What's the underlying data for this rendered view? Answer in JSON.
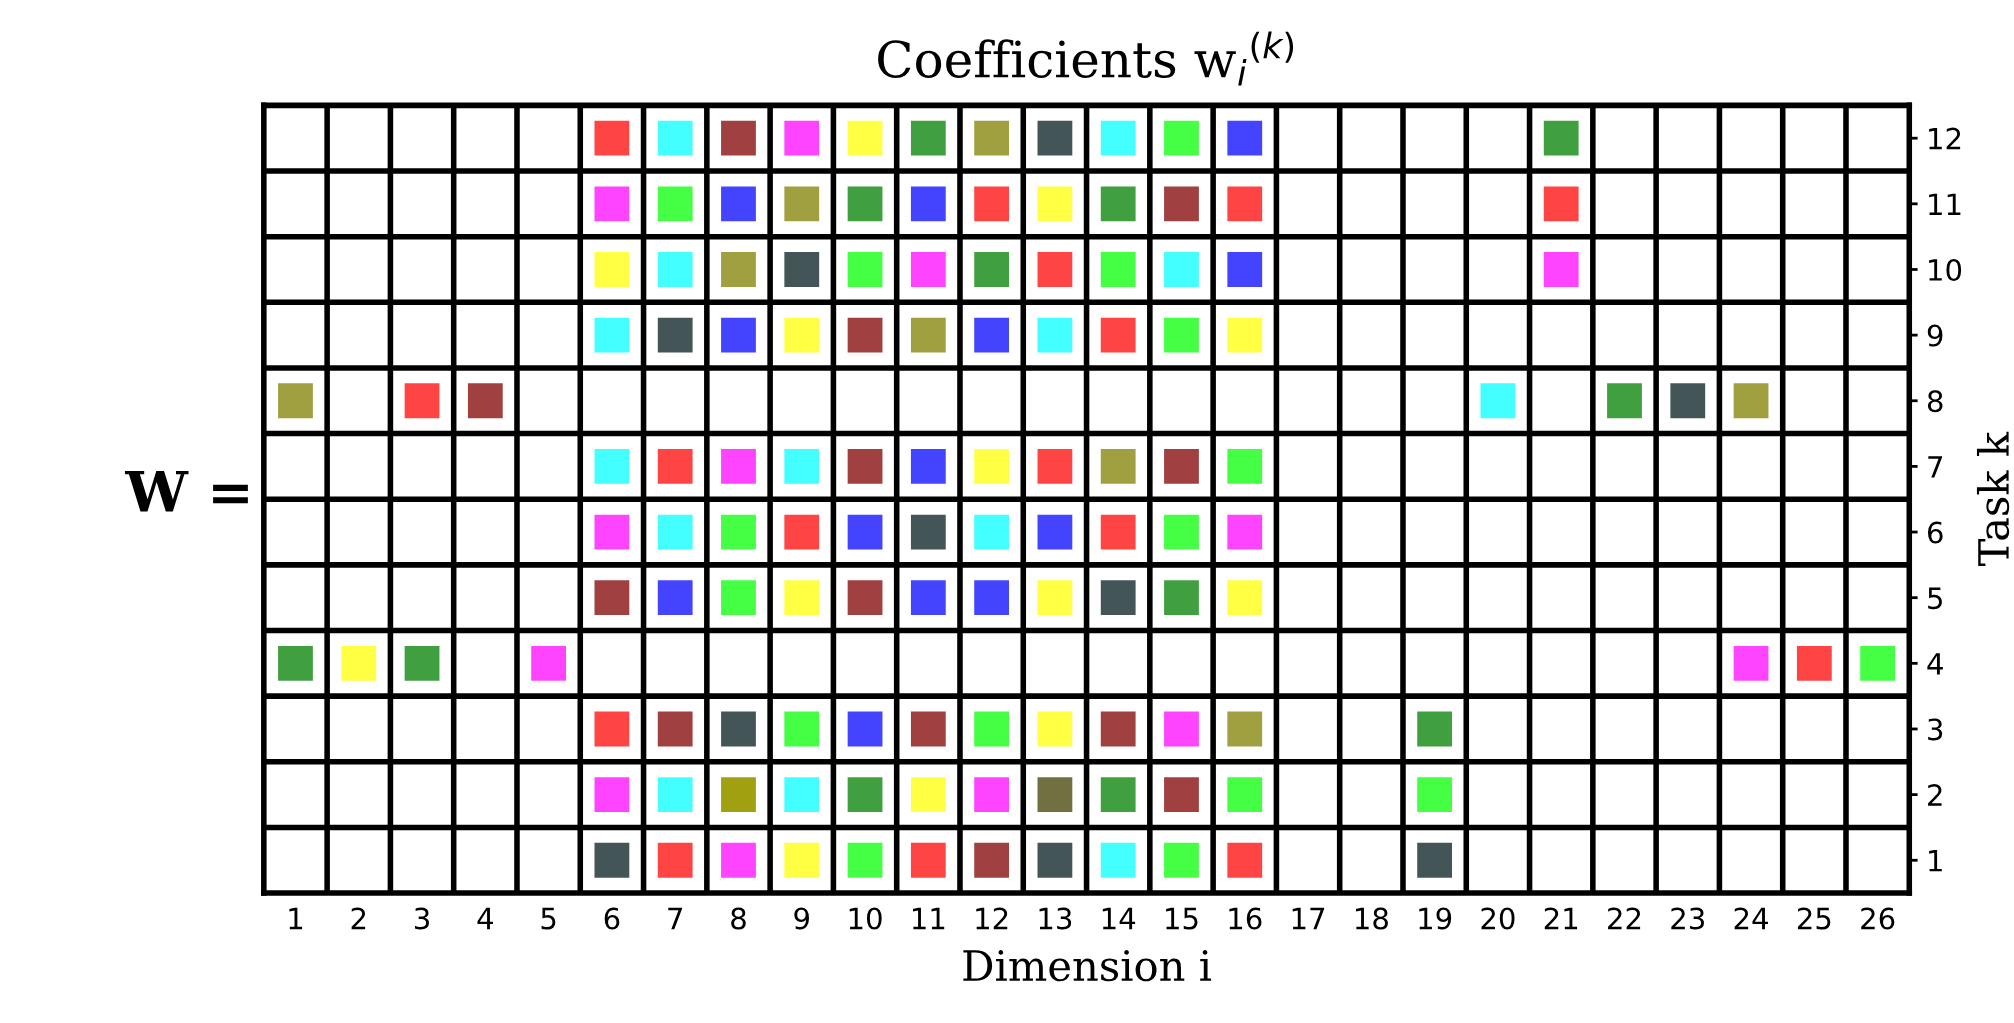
{
  "chart_data": {
    "type": "scatter",
    "title": "Coefficients w$_{i}$$^{(k)}$",
    "xlabel": "Dimension i",
    "ylabel": "Task k",
    "annotations": [
      "W ="
    ],
    "marker": "square",
    "grid": true,
    "xlim": [
      0.5,
      26.5
    ],
    "xticks": [
      1,
      2,
      3,
      4,
      5,
      6,
      7,
      8,
      9,
      10,
      11,
      12,
      13,
      14,
      15,
      16,
      17,
      18,
      19,
      20,
      21,
      22,
      23,
      24,
      25,
      26
    ],
    "ylim": [
      0.5,
      12.5
    ],
    "yticks": [
      1,
      2,
      3,
      4,
      5,
      6,
      7,
      8,
      9,
      10,
      11,
      12
    ],
    "series": [
      {
        "color": "#ff4444",
        "x": [
          6,
          12,
          16,
          21,
          13,
          14,
          3,
          7,
          13,
          9,
          14,
          25,
          6,
          7,
          11,
          16
        ],
        "values": [
          12,
          11,
          11,
          11,
          10,
          9,
          8,
          7,
          7,
          6,
          6,
          4,
          3,
          1,
          1,
          1
        ]
      },
      {
        "color": "#44ffff",
        "x": [
          7,
          14,
          7,
          15,
          6,
          13,
          20,
          6,
          9,
          7,
          12,
          7,
          9,
          14
        ],
        "values": [
          12,
          12,
          10,
          10,
          9,
          9,
          8,
          7,
          7,
          6,
          6,
          2,
          2,
          1
        ]
      },
      {
        "color": "#a04040",
        "x": [
          8,
          15,
          10,
          4,
          10,
          15,
          6,
          10,
          7,
          11,
          14,
          15,
          12
        ],
        "values": [
          12,
          11,
          9,
          8,
          7,
          7,
          5,
          5,
          3,
          3,
          3,
          2,
          1
        ]
      },
      {
        "color": "#ff44ff",
        "x": [
          9,
          6,
          11,
          21,
          8,
          6,
          16,
          5,
          24,
          15,
          6,
          12,
          8
        ],
        "values": [
          12,
          11,
          10,
          10,
          7,
          6,
          6,
          4,
          4,
          3,
          2,
          2,
          1
        ]
      },
      {
        "color": "#ffff44",
        "x": [
          10,
          13,
          6,
          9,
          16,
          12,
          9,
          13,
          16,
          2,
          13,
          11,
          9
        ],
        "values": [
          12,
          11,
          10,
          9,
          9,
          7,
          5,
          5,
          5,
          4,
          3,
          2,
          1
        ]
      },
      {
        "color": "#40a040",
        "x": [
          11,
          21,
          10,
          14,
          12,
          22,
          15,
          1,
          3,
          19,
          10,
          14
        ],
        "values": [
          12,
          12,
          11,
          11,
          10,
          8,
          5,
          4,
          4,
          3,
          2,
          2
        ]
      },
      {
        "color": "#a0a040",
        "x": [
          12,
          9,
          8,
          11,
          1,
          24,
          14,
          16
        ],
        "values": [
          12,
          11,
          10,
          9,
          8,
          8,
          7,
          3
        ]
      },
      {
        "color": "#445558",
        "x": [
          13,
          9,
          7,
          23,
          11,
          14,
          8,
          6,
          13,
          19
        ],
        "values": [
          12,
          10,
          9,
          8,
          6,
          5,
          3,
          1,
          1,
          1
        ]
      },
      {
        "color": "#44ff44",
        "x": [
          15,
          7,
          10,
          14,
          15,
          16,
          8,
          15,
          8,
          26,
          9,
          12,
          16,
          19,
          10,
          15
        ],
        "values": [
          12,
          11,
          10,
          10,
          9,
          7,
          6,
          6,
          5,
          4,
          3,
          3,
          2,
          2,
          1,
          1
        ]
      },
      {
        "color": "#4444ff",
        "x": [
          16,
          8,
          11,
          16,
          8,
          12,
          11,
          10,
          13,
          7,
          11,
          12,
          10
        ],
        "values": [
          12,
          11,
          11,
          10,
          9,
          9,
          7,
          6,
          6,
          5,
          5,
          5,
          3
        ]
      },
      {
        "color": "#a0a010",
        "x": [
          8
        ],
        "values": [
          2
        ]
      },
      {
        "color": "#707040",
        "x": [
          13
        ],
        "values": [
          2
        ]
      }
    ]
  }
}
